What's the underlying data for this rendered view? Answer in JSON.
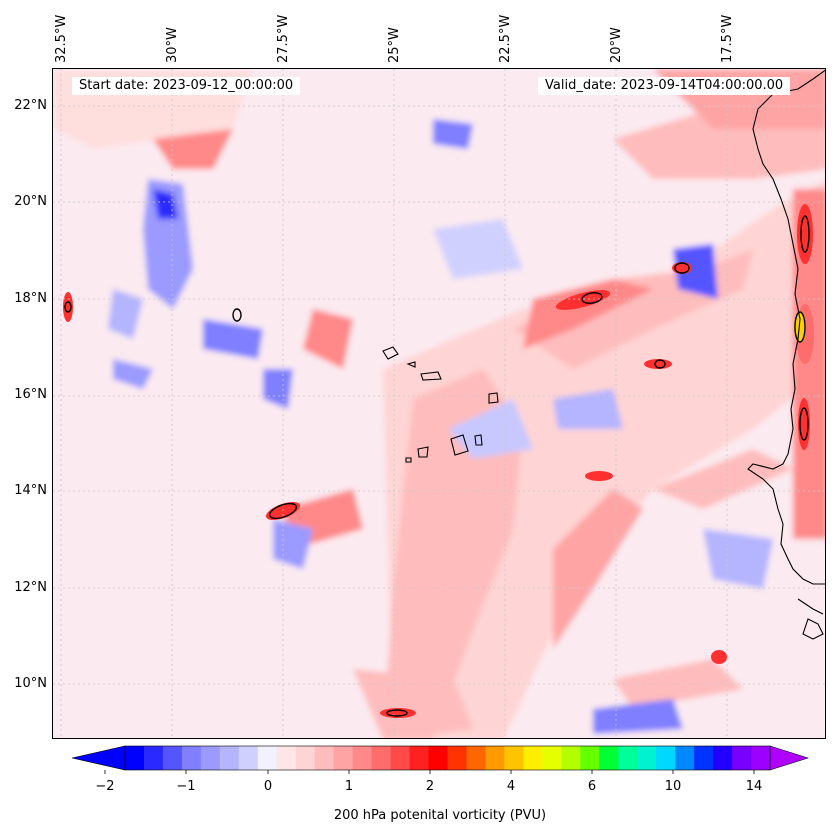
{
  "map": {
    "start_label": "Start date: 2023-09-12_00:00:00",
    "valid_label": "Valid_date: 2023-09-14T04:00:00.00",
    "lon_labels": [
      "32.5°W",
      "30°W",
      "27.5°W",
      "25°W",
      "22.5°W",
      "20°W",
      "17.5°W"
    ],
    "lat_labels": [
      "22°N",
      "20°N",
      "18°N",
      "16°N",
      "14°N",
      "12°N",
      "10°N"
    ],
    "extent": {
      "lon_min": -32.7,
      "lon_max": -15.3,
      "lat_min": 8.9,
      "lat_max": 22.8
    },
    "field_colors": {
      "neg_strong": "#2a2aff",
      "neg_mid": "#7f7fff",
      "neg_weak": "#c8c8ff",
      "background": "#f1f1ff",
      "pos_weak": "#ffd4d4",
      "pos_mid": "#ff9a9a",
      "pos_strong": "#ff3030",
      "pos_max": "#ffd000"
    },
    "coastline_color": "#000000",
    "gridlines": "dashed-light-gray"
  },
  "colorbar": {
    "label": "200 hPa potenital vorticity (PVU)",
    "tick_labels": [
      "−2",
      "−1",
      "0",
      "1",
      "2",
      "4",
      "6",
      "10",
      "14"
    ],
    "extend": "both",
    "colors": [
      "#0000ff",
      "#2a2aff",
      "#5555ff",
      "#7f7fff",
      "#9a9aff",
      "#b4b4ff",
      "#d0d0ff",
      "#f1f1ff",
      "#ffe6e6",
      "#ffd4d4",
      "#ffbcbc",
      "#ffa4a4",
      "#ff8888",
      "#ff6c6c",
      "#ff4a4a",
      "#ff2020",
      "#ff0000",
      "#ff3300",
      "#ff6600",
      "#ff9a00",
      "#ffc400",
      "#ffee00",
      "#e6ff00",
      "#b3ff00",
      "#66ff00",
      "#00ff33",
      "#00ff99",
      "#00f2d0",
      "#00d8ff",
      "#0088ff",
      "#0033ff",
      "#2200ff",
      "#7700ff",
      "#9c00ff"
    ],
    "extend_low_color": "#0000ff",
    "extend_high_color": "#b000ff"
  }
}
